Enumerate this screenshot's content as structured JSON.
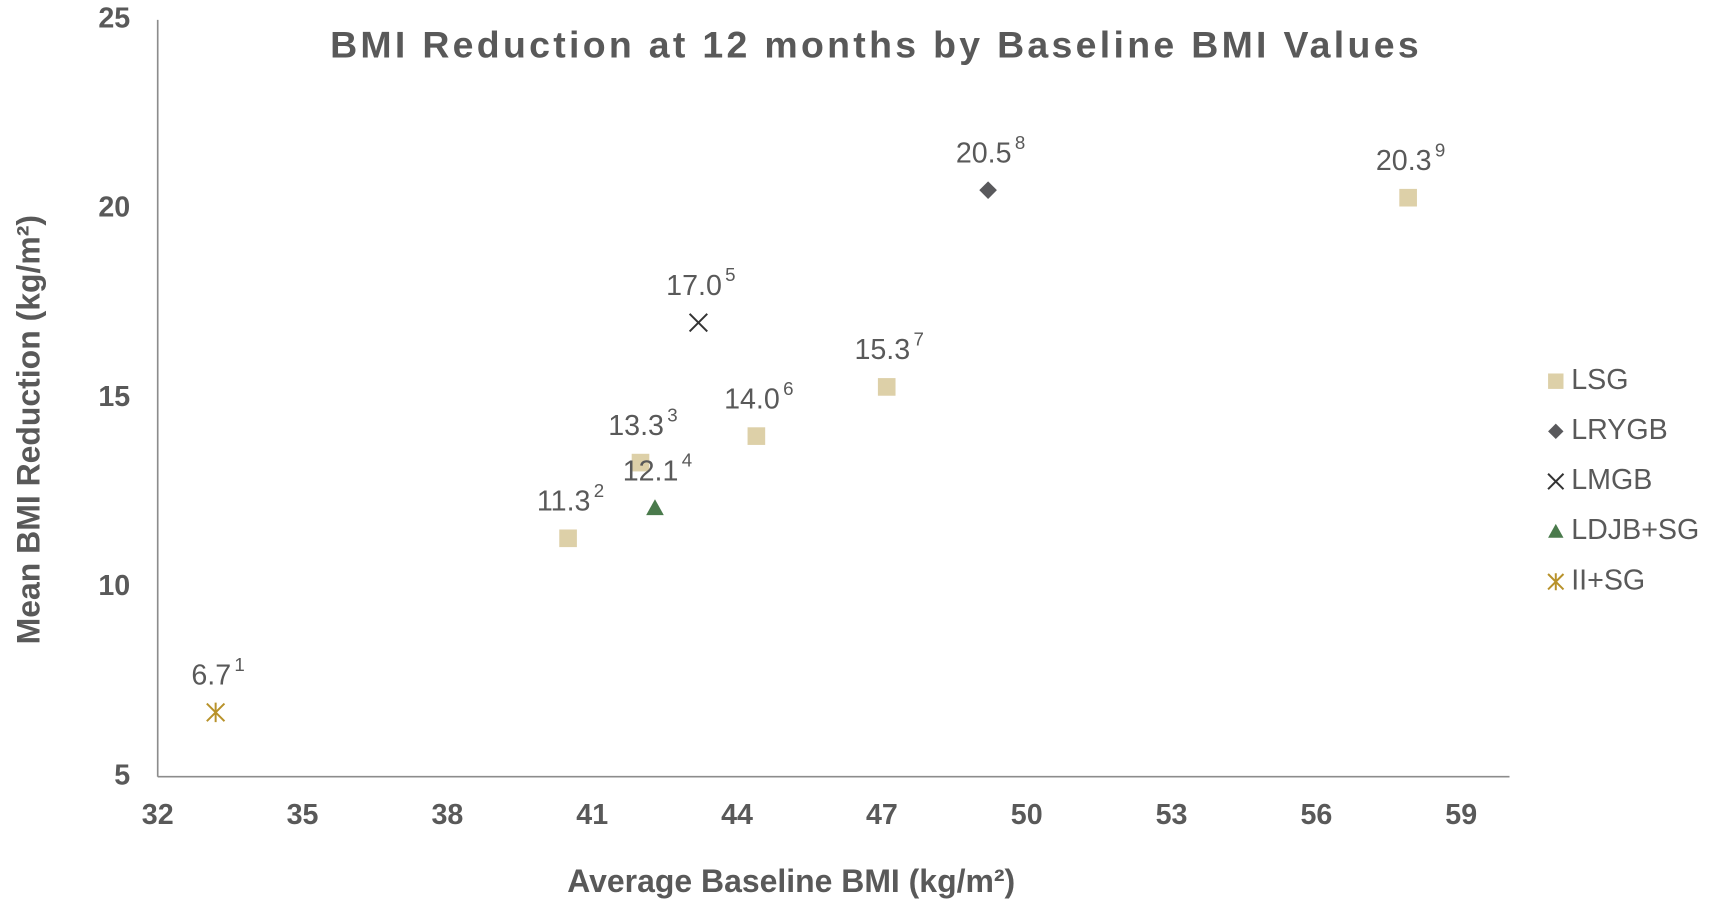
{
  "chart_data": {
    "type": "scatter",
    "title": "BMI Reduction at 12 months by Baseline BMI Values",
    "x_label": "Average Baseline BMI (kg/m²)",
    "y_label": "Mean BMI Reduction (kg/m²)",
    "xlim": [
      32,
      60
    ],
    "xticks": [
      32,
      35,
      38,
      41,
      44,
      47,
      50,
      53,
      56,
      59
    ],
    "ylim": [
      5,
      25
    ],
    "yticks": [
      5,
      10,
      15,
      20,
      25
    ],
    "grid": false,
    "legend": "right",
    "series": [
      {
        "name": "LSG",
        "color": "#ddd0a8",
        "marker": "square",
        "x": [
          40.5,
          42.0,
          44.4,
          47.1,
          57.9
        ],
        "values": [
          11.3,
          13.3,
          14.0,
          15.3,
          20.3
        ],
        "value_labels": [
          "11.3",
          "13.3",
          "14.0",
          "15.3",
          "20.3"
        ],
        "footnotes": [
          "2",
          "3",
          "6",
          "7",
          "9"
        ]
      },
      {
        "name": "LRYGB",
        "color": "#59595c",
        "marker": "diamond",
        "x": [
          49.2
        ],
        "values": [
          20.5
        ],
        "value_labels": [
          "20.5"
        ],
        "footnotes": [
          "8"
        ]
      },
      {
        "name": "LMGB",
        "color": "#333333",
        "marker": "cross",
        "x": [
          43.2
        ],
        "values": [
          17.0
        ],
        "value_labels": [
          "17.0"
        ],
        "footnotes": [
          "5"
        ]
      },
      {
        "name": "LDJB+SG",
        "color": "#4a7a4c",
        "marker": "triangle",
        "x": [
          42.3
        ],
        "values": [
          12.1
        ],
        "value_labels": [
          "12.1"
        ],
        "footnotes": [
          "4"
        ]
      },
      {
        "name": "II+SG",
        "color": "#b8922a",
        "marker": "asterisk",
        "x": [
          33.2
        ],
        "values": [
          6.7
        ],
        "value_labels": [
          "6.7"
        ],
        "footnotes": [
          "1"
        ]
      }
    ]
  }
}
